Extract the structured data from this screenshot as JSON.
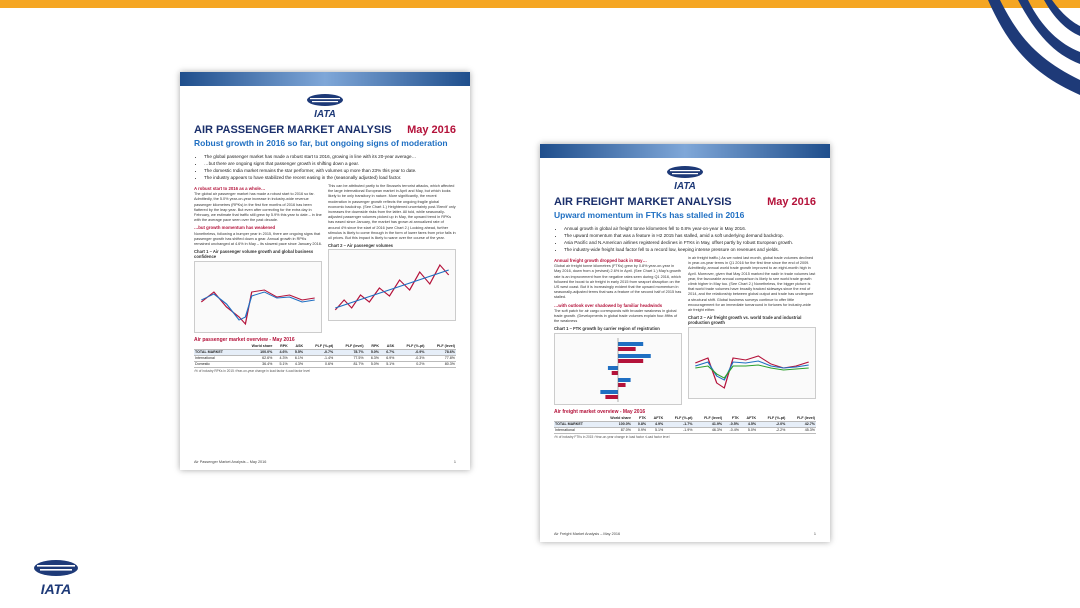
{
  "slide": {
    "accent_color": "#f5a623",
    "brand_color": "#1e3a78"
  },
  "logo": {
    "text": "IATA"
  },
  "doc1": {
    "title": "AIR PASSENGER MARKET ANALYSIS",
    "date": "May 2016",
    "subtitle": "Robust growth in 2016 so far, but ongoing signs of moderation",
    "bullets": [
      "The global passenger market has made a robust start to 2016, growing in line with its 20-year average…",
      "…but there are ongoing signs that passenger growth is shifting down a gear.",
      "The domestic India market remains the star performer, with volumes up more than 23% this year to date.",
      "The industry appears to have stabilized the recent easing in the (seasonally adjusted) load factor."
    ],
    "left_heading": "A robust start to 2016 as a whole…",
    "left_text": "The global air passenger market has made a robust start to 2016 so far. Admittedly, the 5.0% year-on-year increase in industry-wide revenue passenger kilometres (RPKs) in the first five months of 2016 has been flattered by the leap year. But even after correcting for the extra day in February, we estimate that traffic still grew by 5.9% this year to date – in line with the average pace seen over the past decade.",
    "left_heading2": "…but growth momentum has weakened",
    "left_text2": "Nonetheless, following a bumper year in 2015, there are ongoing signs that passenger growth has shifted down a gear. Annual growth in RPKs remained unchanged at 4.6% in May – its slowest pace since January 2016.",
    "right_text": "This can be attributed partly to the Brussels terrorist attacks, which affected the large international European market in April and May, but which looks likely to be only transitory in nature. More significantly, the recent moderation in passenger growth reflects the ongoing fragile global economic backdrop. (See Chart 1.) Heightened uncertainty post-'Brexit' only increases the downside risks from the latter. All told, while seasonally-adjusted passenger volumes picked up in May, the upward trend in RPKs has eased since January, the market has grown at annualized rate of around 4% since the start of 2016 (see Chart 2.) Looking ahead, further stimulus is likely to come through in the form of lower fares from prior falls in oil prices. But this impact is likely to wane over the course of the year.",
    "chart1_title": "Chart 1 – Air passenger volume growth and global business confidence",
    "chart2_title": "Chart 2 – Air passenger volumes",
    "overview_title": "Air passenger market overview - May 2016",
    "table_header": [
      "",
      "World share",
      "RPK",
      "ASK",
      "PLF (%-pt)",
      "PLF (level)",
      "RPK",
      "ASK",
      "PLF (%-pt)",
      "PLF (level)"
    ],
    "table_rows": [
      [
        "TOTAL MARKET",
        "100.0%",
        "4.6%",
        "5.5%",
        "-0.7%",
        "78.7%",
        "5.0%",
        "6.7%",
        "-0.9%",
        "78.6%"
      ],
      [
        "International",
        "62.6%",
        "4.3%",
        "6.1%",
        "-1.4%",
        "77.5%",
        "6.3%",
        "6.9%",
        "-0.3%",
        "77.8%"
      ],
      [
        "Domestic",
        "36.4%",
        "5.1%",
        "4.3%",
        "0.6%",
        "81.7%",
        "5.0%",
        "5.1%",
        "0.2%",
        "80.3%"
      ]
    ],
    "footnote": "¹% of industry RPKs in 2015   ²Year-on-year change in load factor   ³Load factor level",
    "footer_left": "Air Passenger Market Analysis – May 2016",
    "footer_right": "1"
  },
  "doc2": {
    "title": "AIR FREIGHT MARKET ANALYSIS",
    "date": "May 2016",
    "subtitle": "Upward momentum in FTKs has stalled in 2016",
    "bullets": [
      "Annual growth in global air freight tonne kilometres fell to 0.8% year-on-year in May 2016.",
      "The upward momentum that was a feature in H2 2015 has stalled, amid a soft underlying demand backdrop.",
      "Asia Pacific and N.American airlines registered declines in FTKs in May, offset partly by robust European growth.",
      "The industry-wide freight load factor fell to a record low, keeping intense pressure on revenues and yields."
    ],
    "left_heading": "Annual freight growth dropped back in May…",
    "left_text": "Global air freight tonne kilometres (FTKs) grew by 0.8% year-on-year in May 2016, down from a (revised) 2.6% in April. (See Chart 1.) May's growth rate is an improvement from the negative rates seen during Q1 2016, which followed the boost to air freight in early 2015 from seaport disruption on the US west coast. But it is increasingly evident that the upward momentum in seasonally-adjusted terms that was a feature of the second half of 2015 has stalled.",
    "left_heading2": "…with outlook over shadowed by familiar headwinds",
    "left_text2": "The soft patch for air cargo corresponds with broader weakness in global trade growth. (Developments in global trade volumes explain four-fifths of the weakness",
    "right_text": "in air freight traffic.) As we noted last month, global trade volumes declined in year-on-year terms in Q1 2016 for the first time since the end of 2009. Admittedly, annual world trade growth improved to an eight-month high in April. Moreover, given that May 2015 marked the nadir in trade volumes last year, the favourable annual comparison is likely to see world trade growth climb higher in May too. (See Chart 2.) Nonetheless, the bigger picture is that world trade volumes have broadly tracked sideways since the end of 2014, and the relationship between global output and trade has undergone a structural shift. Global business surveys continue to offer little encouragement for an immediate turnaround in fortunes for industry-wide air freight either.",
    "chart1_title": "Chart 1 – FTK growth by carrier region of registration",
    "chart2_title": "Chart 2 – Air freight growth vs. world trade and industrial production growth",
    "overview_title": "Air freight market overview - May 2016",
    "table_header": [
      "",
      "World share",
      "FTK",
      "AFTK",
      "FLF (%-pt)",
      "FLF (level)",
      "FTK",
      "AFTK",
      "FLF (%-pt)",
      "FLF (level)"
    ],
    "table_rows": [
      [
        "TOTAL MARKET",
        "100.0%",
        "0.8%",
        "4.9%",
        "-1.7%",
        "41.9%",
        "-0.5%",
        "4.5%",
        "-2.0%",
        "42.7%"
      ],
      [
        "International",
        "87.0%",
        "0.9%",
        "5.1%",
        "-1.9%",
        "46.3%",
        "-0.4%",
        "5.0%",
        "-2.2%",
        "45.3%"
      ]
    ],
    "footnote": "¹% of industry FTKs in 2015   ²Year-on-year change in load factor   ³Load factor level",
    "footer_left": "Air Freight Market Analysis – May 2016",
    "footer_right": "1"
  }
}
